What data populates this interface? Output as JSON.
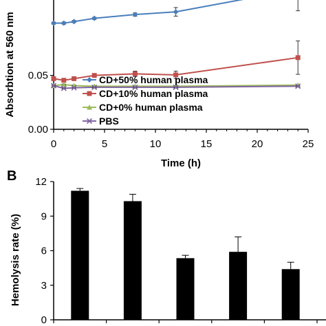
{
  "chart_data": [
    {
      "type": "line",
      "panel_label": "",
      "xlabel": "Time (h)",
      "ylabel": "Absorbtion at 560 nm",
      "xlim": [
        0,
        25
      ],
      "ylim": [
        0,
        0.12
      ],
      "x_ticks": [
        "0",
        "5",
        "10",
        "15",
        "20",
        "25"
      ],
      "y_ticks": [
        {
          "value": 0.0,
          "label": "0.00"
        },
        {
          "value": 0.05,
          "label": "0.05"
        }
      ],
      "grid": false,
      "legend_position": "bottom-left",
      "series": [
        {
          "name": "CD+50% human plasma",
          "color": "#4a7ebb",
          "marker": "diamond",
          "x": [
            0,
            1,
            2,
            4,
            8,
            12,
            24
          ],
          "y": [
            0.0985,
            0.0985,
            0.1,
            0.103,
            0.1065,
            0.109,
            0.13
          ],
          "err": [
            0.001,
            0.001,
            0.001,
            0.001,
            0.0015,
            0.004,
            0.02
          ]
        },
        {
          "name": "CD+10% human plasma",
          "color": "#c0504d",
          "marker": "square",
          "x": [
            0,
            1,
            2,
            4,
            8,
            12,
            24
          ],
          "y": [
            0.047,
            0.0455,
            0.047,
            0.05,
            0.0515,
            0.0505,
            0.0665
          ],
          "err": [
            0.001,
            0.001,
            0.001,
            0.0015,
            0.0025,
            0.0035,
            0.0155
          ]
        },
        {
          "name": "CD+0% human plasma",
          "color": "#9bbb59",
          "marker": "triangle",
          "x": [
            0,
            1,
            2,
            4,
            8,
            12,
            24
          ],
          "y": [
            0.0405,
            0.0415,
            0.0405,
            0.04,
            0.04,
            0.04,
            0.041
          ],
          "err": [
            0.0005,
            0.0005,
            0.0005,
            0.0005,
            0.0005,
            0.0005,
            0.0005
          ]
        },
        {
          "name": "PBS",
          "color": "#8064a2",
          "marker": "x",
          "x": [
            0,
            1,
            2,
            4,
            8,
            12,
            24
          ],
          "y": [
            0.0405,
            0.038,
            0.0385,
            0.039,
            0.039,
            0.039,
            0.04
          ],
          "err": [
            0.0005,
            0.0005,
            0.0005,
            0.0005,
            0.0005,
            0.0005,
            0.0005
          ]
        }
      ]
    },
    {
      "type": "bar",
      "panel_label": "B",
      "xlabel": "",
      "ylabel": "Hemolysis rate (%)",
      "ylim": [
        0,
        12
      ],
      "y_ticks": [
        "0",
        "3",
        "6",
        "9",
        "12"
      ],
      "grid": false,
      "bar_color": "#000000",
      "values": [
        11.2,
        10.3,
        5.35,
        5.9,
        4.4
      ],
      "err": [
        0.2,
        0.6,
        0.25,
        1.3,
        0.6
      ]
    }
  ]
}
